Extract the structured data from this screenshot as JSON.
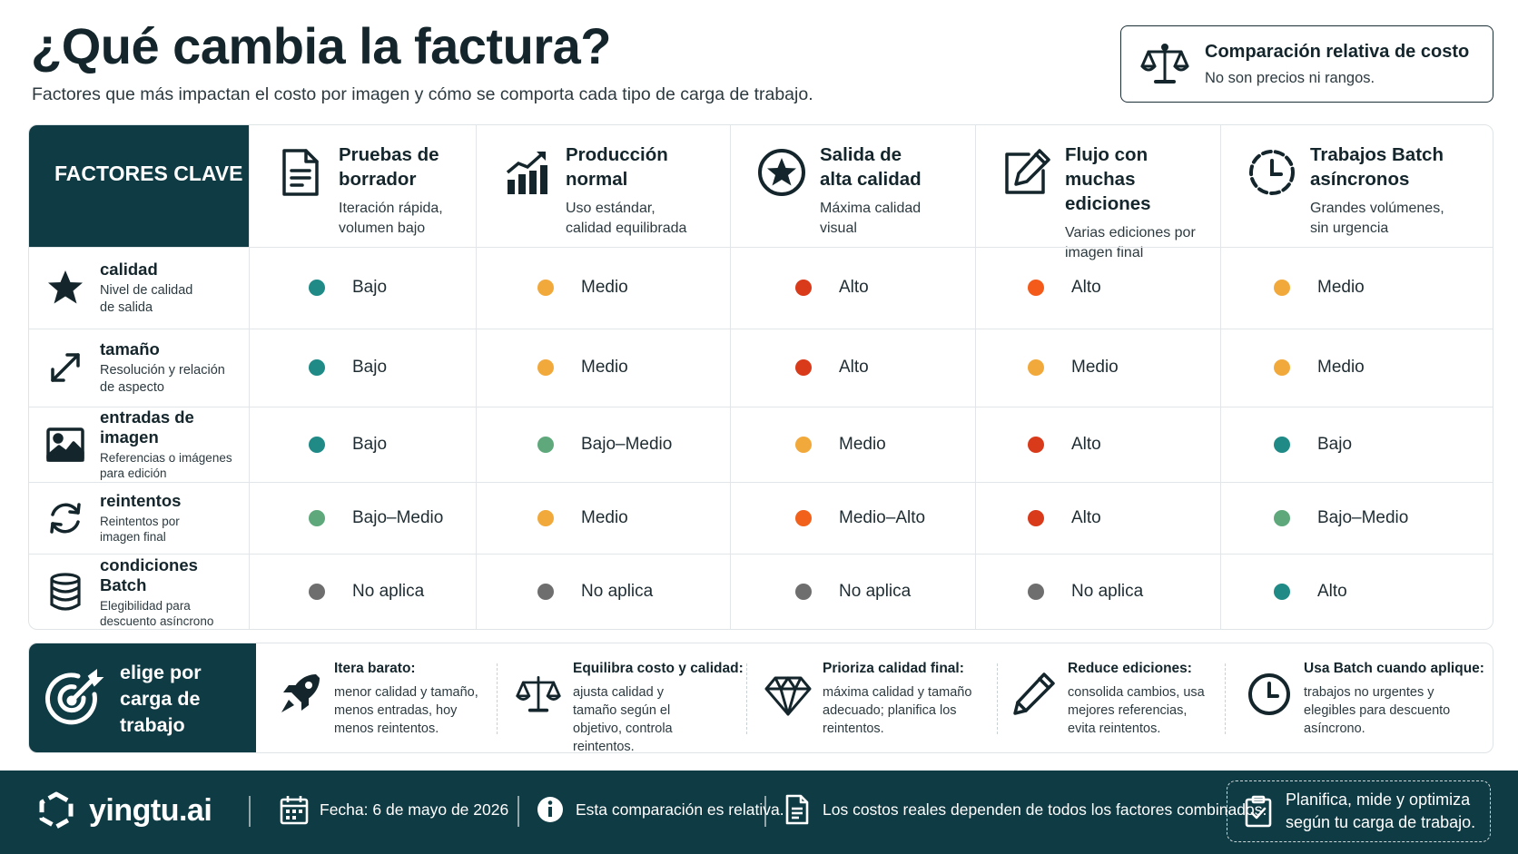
{
  "header": {
    "title": "¿Qué cambia la factura?",
    "subtitle": "Factores que más impactan el costo por imagen y cómo se comporta cada tipo de carga de trabajo."
  },
  "comparison_note": {
    "title": "Comparación relativa de costo",
    "subtitle": "No son precios ni rangos.",
    "icon": "scale-icon"
  },
  "table": {
    "corner_label": "FACTORES CLAVE",
    "columns": [
      {
        "title": "Pruebas de borrador",
        "desc": "Iteración rápida, volumen bajo",
        "icon": "document-icon"
      },
      {
        "title": "Producción normal",
        "desc": "Uso estándar, calidad equilibrada",
        "icon": "bar-chart-icon"
      },
      {
        "title": "Salida de alta calidad",
        "desc": "Máxima calidad visual",
        "icon": "star-badge-icon"
      },
      {
        "title": "Flujo con muchas ediciones",
        "desc": "Varias ediciones por imagen final",
        "icon": "edit-icon"
      },
      {
        "title": "Trabajos Batch asíncronos",
        "desc": "Grandes volúmenes, sin urgencia",
        "icon": "clock-icon"
      }
    ],
    "rows": [
      {
        "title": "calidad",
        "desc": "Nivel de calidad de salida",
        "icon": "star-icon",
        "cells": [
          {
            "label": "Bajo",
            "level": "bajo"
          },
          {
            "label": "Medio",
            "level": "medio"
          },
          {
            "label": "Alto",
            "level": "alto"
          },
          {
            "label": "Alto",
            "level": "alto-orange"
          },
          {
            "label": "Medio",
            "level": "medio"
          }
        ]
      },
      {
        "title": "tamaño",
        "desc": "Resolución y relación de aspecto",
        "icon": "resize-arrows-icon",
        "cells": [
          {
            "label": "Bajo",
            "level": "bajo"
          },
          {
            "label": "Medio",
            "level": "medio"
          },
          {
            "label": "Alto",
            "level": "alto"
          },
          {
            "label": "Medio",
            "level": "medio"
          },
          {
            "label": "Medio",
            "level": "medio"
          }
        ]
      },
      {
        "title": "entradas de imagen",
        "desc": "Referencias o imágenes para edición",
        "icon": "image-icon",
        "cells": [
          {
            "label": "Bajo",
            "level": "bajo"
          },
          {
            "label": "Bajo–Medio",
            "level": "bajo-medio"
          },
          {
            "label": "Medio",
            "level": "medio"
          },
          {
            "label": "Alto",
            "level": "alto"
          },
          {
            "label": "Bajo",
            "level": "bajo"
          }
        ]
      },
      {
        "title": "reintentos",
        "desc": "Reintentos por imagen final",
        "icon": "retry-icon",
        "cells": [
          {
            "label": "Bajo–Medio",
            "level": "bajo-medio"
          },
          {
            "label": "Medio",
            "level": "medio"
          },
          {
            "label": "Medio–Alto",
            "level": "medio-alto"
          },
          {
            "label": "Alto",
            "level": "alto"
          },
          {
            "label": "Bajo–Medio",
            "level": "bajo-medio"
          }
        ]
      },
      {
        "title": "condiciones Batch",
        "desc": "Elegibilidad para descuento asíncrono",
        "icon": "database-icon",
        "cells": [
          {
            "label": "No aplica",
            "level": "na"
          },
          {
            "label": "No aplica",
            "level": "na"
          },
          {
            "label": "No aplica",
            "level": "na"
          },
          {
            "label": "No aplica",
            "level": "na"
          },
          {
            "label": "Alto",
            "level": "bajo"
          }
        ]
      }
    ]
  },
  "level_colors": {
    "bajo": "#1f8a86",
    "bajo-medio": "#5ea87c",
    "medio": "#f2a93b",
    "medio-alto": "#f2611c",
    "alto": "#d93a1a",
    "alto-orange": "#f45a1a",
    "na": "#6e6e6e"
  },
  "recommendations": {
    "label": "elige por carga de trabajo",
    "icon": "target-icon",
    "items": [
      {
        "title": "Itera barato:",
        "desc": "menor calidad y tamaño, menos entradas, hoy menos reintentos.",
        "icon": "rocket-icon"
      },
      {
        "title": "Equilibra costo y calidad:",
        "desc": "ajusta calidad y tamaño según el objetivo, controla reintentos.",
        "icon": "scale-icon"
      },
      {
        "title": "Prioriza calidad final:",
        "desc": "máxima calidad y tamaño adecuado; planifica los reintentos.",
        "icon": "diamond-icon"
      },
      {
        "title": "Reduce ediciones:",
        "desc": "consolida cambios, usa mejores referencias, evita reintentos.",
        "icon": "pencil-icon"
      },
      {
        "title": "Usa Batch cuando aplique:",
        "desc": "trabajos no urgentes y elegibles para descuento asíncrono.",
        "icon": "clock-icon"
      }
    ]
  },
  "footer": {
    "brand": "yingtu.ai",
    "date": "Fecha: 6 de mayo de 2026",
    "info": "Esta comparación es relativa.",
    "note": "Los costos reales dependen de todos los factores combinados.",
    "cta": "Planifica, mide y optimiza según tu carga de trabajo.",
    "cta_line1": "Planifica, mide y optimiza",
    "cta_line2": "según tu carga de trabajo."
  },
  "colors": {
    "dark": "#0f3b44"
  }
}
